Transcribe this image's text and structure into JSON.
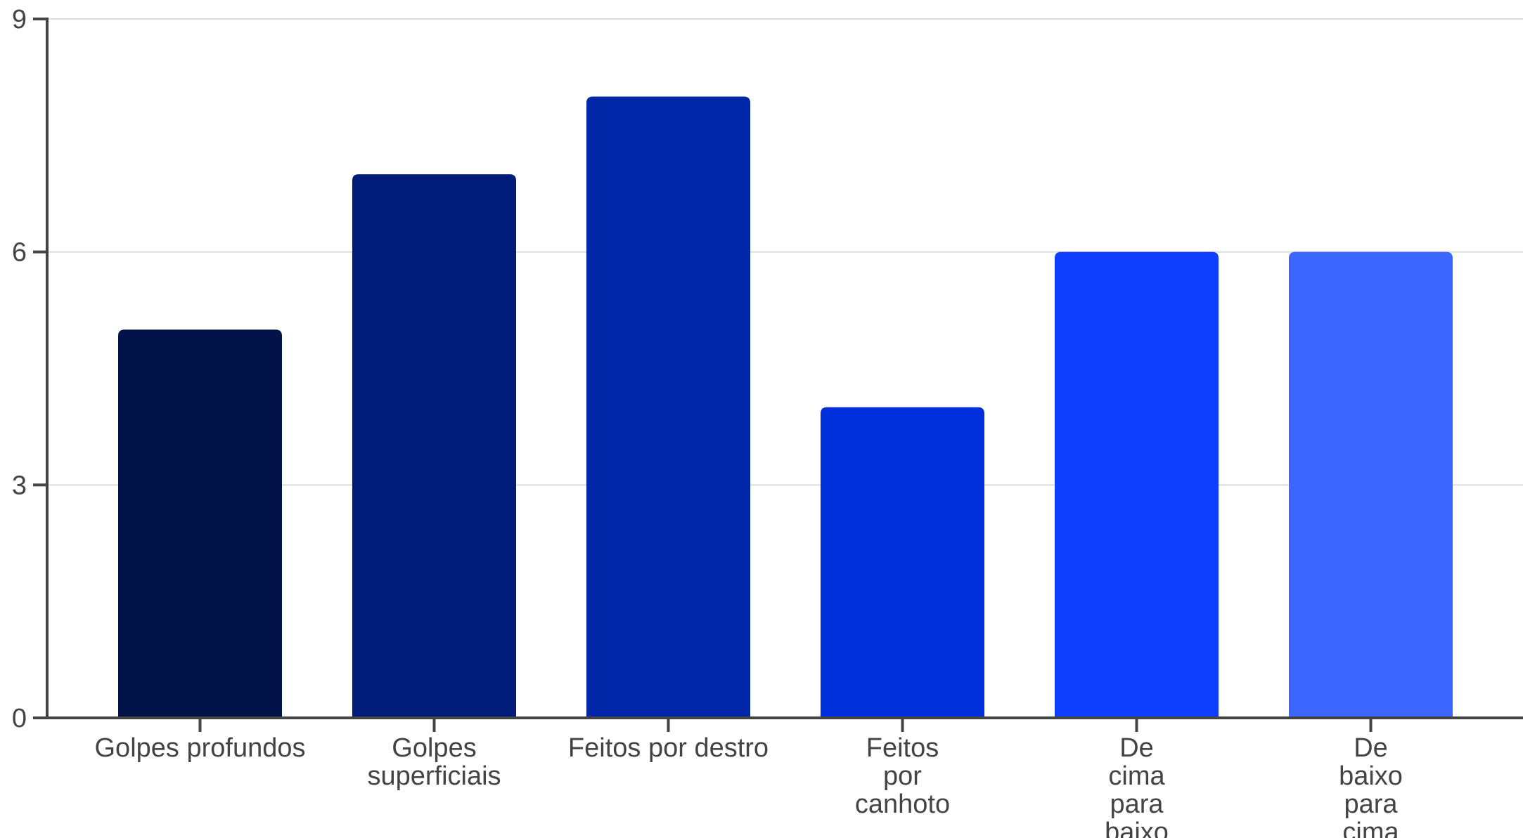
{
  "chart_data": {
    "type": "bar",
    "title": "",
    "xlabel": "",
    "ylabel": "",
    "categories": [
      [
        "Golpes profundos"
      ],
      [
        "Golpes",
        "superficiais"
      ],
      [
        "Feitos por destro"
      ],
      [
        "Feitos",
        "por",
        "canhoto"
      ],
      [
        "De",
        "cima",
        "para",
        "baixo"
      ],
      [
        "De",
        "baixo",
        "para",
        "cima"
      ]
    ],
    "values": [
      5,
      7,
      8,
      4,
      6,
      6
    ],
    "bar_colors": [
      "#02134A",
      "#001C78",
      "#0026A8",
      "#002FDC",
      "#103EFF",
      "#3C66FF"
    ],
    "ylim": [
      0,
      9
    ],
    "yticks": [
      0,
      3,
      6,
      9
    ],
    "grid": true,
    "legend": "none",
    "colors": {
      "axis": "#444444",
      "grid": "#DDDDDD",
      "text": "#444444"
    }
  }
}
